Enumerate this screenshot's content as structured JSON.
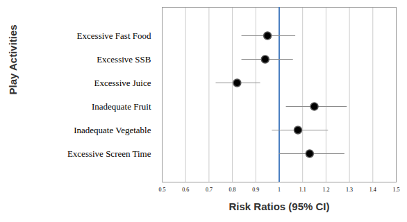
{
  "chart_data": {
    "type": "forest",
    "ylabel": "Play Activities",
    "xlabel": "Risk Ratios (95% CI)",
    "orientation": "horizontal",
    "categories": [
      "Excessive Fast Food",
      "Excessive SSB",
      "Excessive Juice",
      "Inadequate Fruit",
      "Inadequate Vegetable",
      "Excessive Screen Time"
    ],
    "values": [
      0.95,
      0.94,
      0.82,
      1.15,
      1.08,
      1.13
    ],
    "ci_lower": [
      0.84,
      0.84,
      0.73,
      1.03,
      0.97,
      1.0
    ],
    "ci_upper": [
      1.07,
      1.06,
      0.92,
      1.29,
      1.21,
      1.28
    ],
    "reference_line": 1,
    "color": "#000000",
    "xlim": [
      0.5,
      1.5
    ],
    "xticks": [
      0.5,
      0.6,
      0.7,
      0.8,
      0.9,
      1,
      1.1,
      1.2,
      1.3,
      1.4,
      1.5
    ],
    "grid": true
  }
}
